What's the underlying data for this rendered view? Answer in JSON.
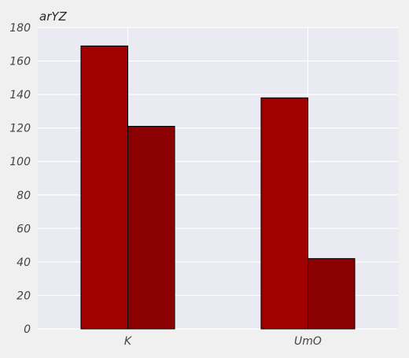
{
  "chart_data": {
    "type": "bar",
    "title": "arYZ",
    "xlabel": "",
    "ylabel": "",
    "categories": [
      "K",
      "UmO"
    ],
    "series": [
      {
        "values": [
          169,
          138
        ],
        "color": "#a00000"
      },
      {
        "values": [
          121,
          42
        ],
        "color": "#8b0000"
      }
    ],
    "ylim": [
      0,
      180
    ],
    "yticks": [
      0,
      20,
      40,
      60,
      80,
      100,
      120,
      140,
      160,
      180
    ],
    "grid": true,
    "plot_background": "#eaeaf2",
    "figure_background": "#f0f0f0",
    "grid_color": "#ffffff",
    "bar_edge_color": "#000000"
  }
}
